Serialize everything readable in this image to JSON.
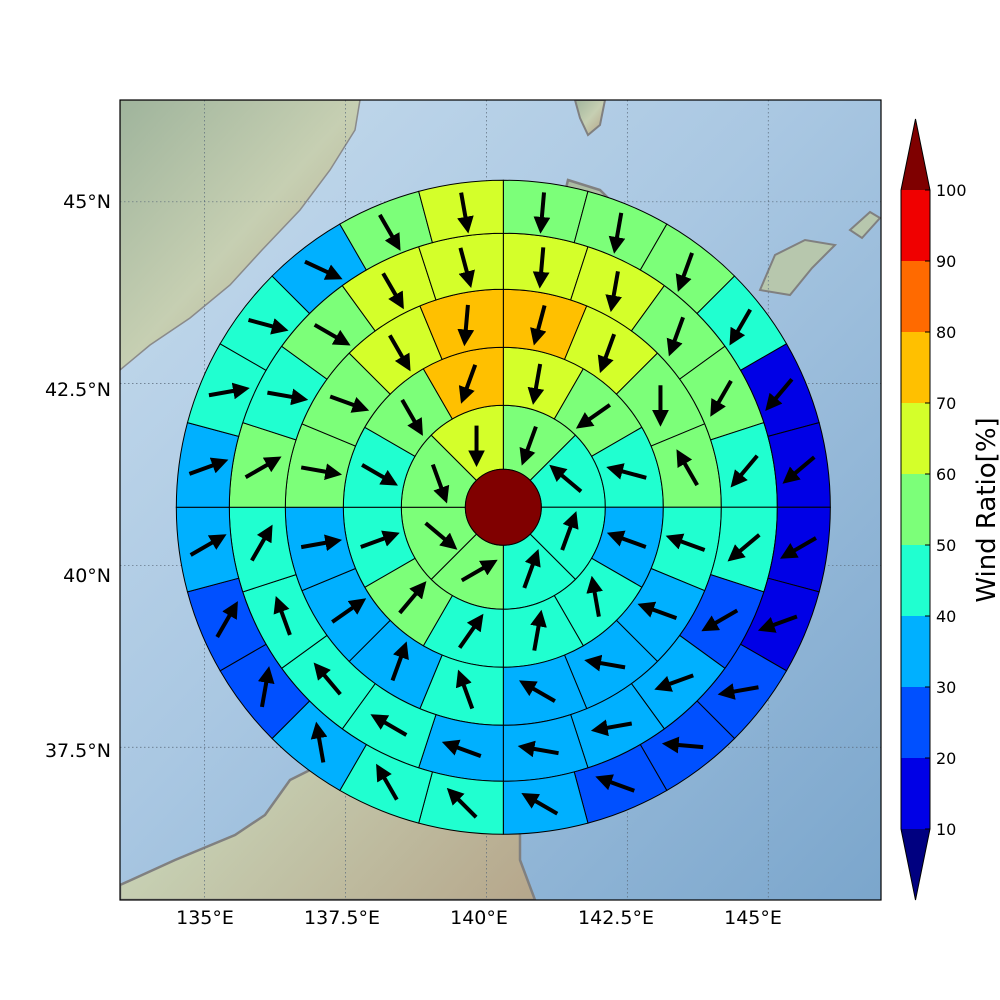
{
  "chart_data": {
    "type": "heatmap",
    "subtype": "polar wind-ratio sector map over a geographic basemap",
    "map": {
      "lon_range": [
        133.5,
        147.0
      ],
      "lat_range": [
        35.4,
        46.4
      ],
      "xticks": [
        135.0,
        137.5,
        140.0,
        142.5,
        145.0
      ],
      "xtick_labels": [
        "135°E",
        "137.5°E",
        "140°E",
        "142.5°E",
        "145°E"
      ],
      "yticks": [
        45.0,
        42.5,
        40.0,
        37.5
      ],
      "ytick_labels": [
        "45°N",
        "42.5°N",
        "40°N",
        "37.5°N"
      ],
      "grid": "dotted",
      "land_color": "#b7c7ad",
      "sea_color": "#9dbedb",
      "coastline_color": "#808080"
    },
    "center": {
      "lon": 140.3,
      "lat": 40.8,
      "color": "#800000"
    },
    "rings": [
      {
        "ring": 1,
        "sectors": 8,
        "start_angle_deg": 90,
        "values": [
          55,
          42,
          45,
          42,
          52,
          52,
          52,
          63
        ],
        "wind_dir_deg": [
          250,
          140,
          70,
          70,
          30,
          320,
          290,
          270
        ]
      },
      {
        "ring": 2,
        "sectors": 12,
        "start_angle_deg": 90,
        "values": [
          64,
          55,
          45,
          35,
          45,
          45,
          45,
          52,
          45,
          47,
          52,
          72
        ],
        "wind_dir_deg": [
          260,
          215,
          165,
          160,
          100,
          80,
          55,
          50,
          20,
          330,
          300,
          250
        ]
      },
      {
        "ring": 3,
        "sectors": 16,
        "start_angle_deg": 90,
        "values": [
          74,
          64,
          55,
          52,
          45,
          35,
          35,
          38,
          40,
          38,
          32,
          35,
          52,
          57,
          65,
          76
        ],
        "wind_dir_deg": [
          255,
          250,
          270,
          120,
          160,
          160,
          170,
          150,
          110,
          70,
          35,
          10,
          350,
          340,
          300,
          265
        ]
      },
      {
        "ring": 4,
        "sectors": 20,
        "start_angle_deg": 90,
        "values": [
          65,
          64,
          57,
          52,
          48,
          48,
          25,
          32,
          32,
          35,
          38,
          45,
          42,
          48,
          48,
          55,
          48,
          57,
          64,
          62
        ],
        "wind_dir_deg": [
          265,
          260,
          250,
          240,
          230,
          220,
          210,
          200,
          190,
          170,
          160,
          150,
          130,
          110,
          60,
          30,
          350,
          330,
          300,
          285
        ]
      },
      {
        "ring": 5,
        "sectors": 24,
        "start_angle_deg": 90,
        "values": [
          58,
          55,
          54,
          44,
          18,
          14,
          12,
          16,
          20,
          22,
          25,
          35,
          45,
          45,
          35,
          25,
          25,
          32,
          37,
          45,
          45,
          38,
          56,
          60
        ],
        "wind_dir_deg": [
          265,
          260,
          250,
          240,
          230,
          220,
          210,
          200,
          190,
          175,
          160,
          150,
          135,
          120,
          100,
          80,
          60,
          30,
          20,
          10,
          345,
          335,
          300,
          280
        ]
      }
    ],
    "colorbar": {
      "label": "Wind Ratio[%]",
      "ticks": [
        10,
        20,
        30,
        40,
        50,
        60,
        70,
        80,
        90,
        100
      ],
      "tick_labels": [
        "10",
        "20",
        "30",
        "40",
        "50",
        "60",
        "70",
        "80",
        "90",
        "100"
      ],
      "boundaries": [
        0,
        10,
        20,
        30,
        40,
        50,
        60,
        70,
        80,
        90,
        100,
        110
      ],
      "colors": [
        "#000080",
        "#0000e6",
        "#0050ff",
        "#00b0ff",
        "#20ffd0",
        "#7cff79",
        "#d4ff2a",
        "#ffc000",
        "#ff6a00",
        "#f00000",
        "#7f0000"
      ],
      "extend": "both"
    }
  }
}
